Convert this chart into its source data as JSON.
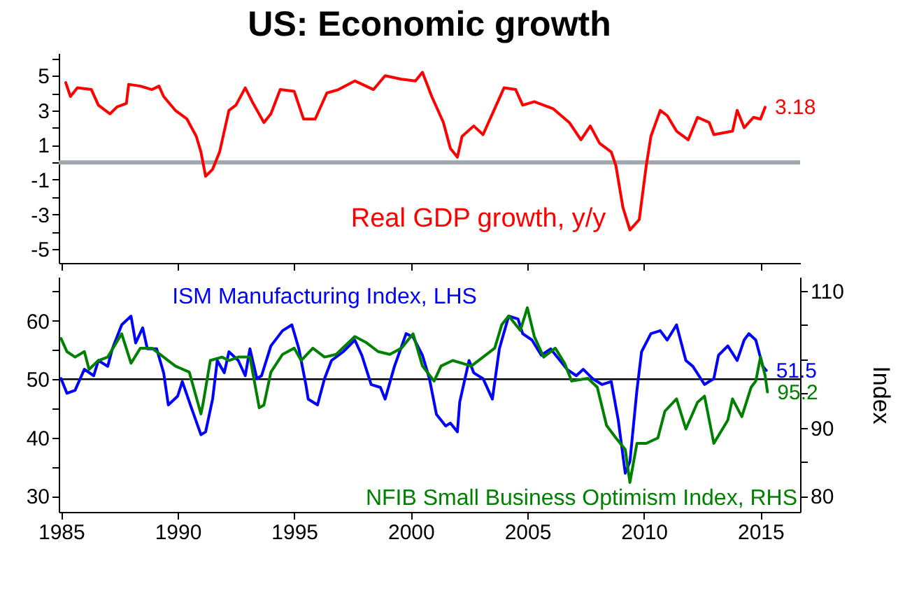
{
  "chart_data": [
    {
      "type": "line",
      "title": "US: Economic growth",
      "xlim": [
        1984.9,
        2016.7
      ],
      "xticks": [
        1985,
        1990,
        1995,
        2000,
        2005,
        2010,
        2015
      ],
      "ylim": [
        -5.8,
        6.3
      ],
      "yticks": [
        -5,
        {
          "value": -4,
          "label": null
        },
        -3,
        {
          "value": -2,
          "label": null
        },
        -1,
        {
          "value": 0,
          "label": null
        },
        1,
        {
          "value": 2,
          "label": null
        },
        3,
        {
          "value": 4,
          "label": null
        },
        5,
        {
          "value": 6,
          "label": null
        }
      ],
      "tick_labels": "y",
      "grid": false,
      "ref_lines": [
        {
          "axis": "y",
          "value": 0,
          "color": "#a0a8ad"
        }
      ],
      "series": [
        {
          "name": "Real GDP growth, y/y",
          "color": "#ff0000",
          "x": [
            1985.2,
            1985.4,
            1985.7,
            1986.3,
            1986.6,
            1987.1,
            1987.4,
            1987.8,
            1987.9,
            1988.4,
            1988.9,
            1989.2,
            1989.4,
            1989.9,
            1990.4,
            1990.8,
            1991.0,
            1991.2,
            1991.5,
            1991.8,
            1992.2,
            1992.5,
            1992.9,
            1993.2,
            1993.7,
            1994.0,
            1994.4,
            1995.0,
            1995.4,
            1995.9,
            1996.4,
            1996.9,
            1997.6,
            1998.4,
            1998.9,
            1999.6,
            2000.2,
            2000.5,
            2000.9,
            2001.4,
            2001.7,
            2002.0,
            2002.2,
            2002.7,
            2003.1,
            2003.6,
            2004.0,
            2004.5,
            2004.8,
            2005.3,
            2006.1,
            2006.8,
            2007.3,
            2007.7,
            2008.1,
            2008.6,
            2008.8,
            2009.1,
            2009.4,
            2009.8,
            2010.1,
            2010.3,
            2010.7,
            2011.0,
            2011.4,
            2011.9,
            2012.3,
            2012.8,
            2013.0,
            2013.8,
            2014.0,
            2014.3,
            2014.7,
            2015.0,
            2015.2
          ],
          "values": [
            4.6,
            3.8,
            4.3,
            4.2,
            3.3,
            2.8,
            3.2,
            3.4,
            4.5,
            4.4,
            4.2,
            4.4,
            3.8,
            3.0,
            2.5,
            1.5,
            0.6,
            -0.8,
            -0.4,
            0.6,
            3.0,
            3.3,
            4.3,
            3.5,
            2.3,
            2.8,
            4.2,
            4.1,
            2.5,
            2.5,
            4.0,
            4.2,
            4.7,
            4.2,
            5.0,
            4.8,
            4.7,
            5.2,
            3.8,
            2.3,
            0.8,
            0.3,
            1.5,
            2.1,
            1.6,
            3.1,
            4.3,
            4.2,
            3.3,
            3.5,
            3.1,
            2.3,
            1.3,
            2.1,
            1.1,
            0.6,
            -0.2,
            -2.6,
            -3.9,
            -3.3,
            -0.2,
            1.5,
            3.0,
            2.7,
            1.8,
            1.3,
            2.6,
            2.3,
            1.6,
            1.8,
            3.0,
            2.0,
            2.6,
            2.5,
            3.18
          ],
          "value_labels": [
            null,
            null,
            null,
            null,
            null,
            null,
            null,
            null,
            null,
            null,
            null,
            null,
            null,
            null,
            null,
            null,
            null,
            null,
            null,
            null,
            null,
            null,
            null,
            null,
            null,
            null,
            null,
            null,
            null,
            null,
            null,
            null,
            null,
            null,
            null,
            null,
            null,
            null,
            null,
            null,
            null,
            null,
            null,
            null,
            null,
            null,
            null,
            null,
            null,
            null,
            null,
            null,
            null,
            null,
            null,
            null,
            null,
            null,
            null,
            null,
            null,
            null,
            null,
            null,
            null,
            null,
            null,
            null,
            null,
            null,
            null,
            null,
            null,
            null,
            "3.18"
          ]
        }
      ]
    },
    {
      "type": "line",
      "xlim": [
        1984.9,
        2016.7
      ],
      "xticks": [
        1985,
        1990,
        1995,
        2000,
        2005,
        2010,
        2015
      ],
      "ylim": [
        27.3,
        67.5
      ],
      "yticks": [
        30,
        {
          "value": 35,
          "label": null
        },
        40,
        {
          "value": 45,
          "label": null
        },
        50,
        {
          "value": 55,
          "label": null
        },
        60,
        {
          "value": 65,
          "label": null
        }
      ],
      "y2lim": [
        77.7,
        112
      ],
      "y2ticks": [
        80,
        {
          "value": 85,
          "label": null
        },
        90,
        {
          "value": 95,
          "label": null
        },
        {
          "value": 100,
          "label": null
        },
        {
          "value": 105,
          "label": null
        },
        110
      ],
      "y2label": "Index",
      "grid": false,
      "ref_lines": [
        {
          "axis": "y",
          "value": 50,
          "color": "#000000"
        }
      ],
      "series": [
        {
          "name": "ISM Manufacturing Index, LHS",
          "color": "#0000ff",
          "axis": "y",
          "x": [
            1985.0,
            1985.25,
            1985.6,
            1986.0,
            1986.4,
            1986.6,
            1987.0,
            1987.2,
            1987.6,
            1988.0,
            1988.2,
            1988.5,
            1988.7,
            1989.1,
            1989.4,
            1989.6,
            1990.0,
            1990.2,
            1990.6,
            1991.0,
            1991.2,
            1991.5,
            1991.7,
            1992.0,
            1992.2,
            1992.6,
            1992.9,
            1993.1,
            1993.4,
            1993.6,
            1994.0,
            1994.5,
            1994.9,
            1995.2,
            1995.5,
            1995.6,
            1996.0,
            1996.3,
            1996.6,
            1997.1,
            1997.6,
            1997.9,
            1998.3,
            1998.7,
            1998.9,
            1999.3,
            1999.8,
            2000.1,
            2000.5,
            2000.8,
            2001.1,
            2001.5,
            2001.7,
            2002.0,
            2002.1,
            2002.5,
            2002.7,
            2003.1,
            2003.5,
            2003.8,
            2004.2,
            2004.6,
            2004.8,
            2005.2,
            2005.6,
            2006.0,
            2006.3,
            2006.7,
            2007.1,
            2007.4,
            2007.8,
            2008.2,
            2008.6,
            2008.9,
            2009.2,
            2009.4,
            2009.7,
            2009.9,
            2010.3,
            2010.7,
            2011.0,
            2011.4,
            2011.8,
            2012.1,
            2012.6,
            2013.0,
            2013.2,
            2013.6,
            2014.0,
            2014.3,
            2014.5,
            2014.8,
            2015.1,
            2015.25
          ],
          "values": [
            50.1,
            47.6,
            48.1,
            51.7,
            50.6,
            53.2,
            52.2,
            55.2,
            59.3,
            60.8,
            56.2,
            58.8,
            55.2,
            55.2,
            51.1,
            45.6,
            47.1,
            49.6,
            45.0,
            40.5,
            41.0,
            46.6,
            53.2,
            51.1,
            54.7,
            53.2,
            50.6,
            55.2,
            50.1,
            50.6,
            55.7,
            58.3,
            59.3,
            55.2,
            49.1,
            46.6,
            45.6,
            50.1,
            53.2,
            54.7,
            56.7,
            54.1,
            49.1,
            48.6,
            46.6,
            52.2,
            57.8,
            57.2,
            54.1,
            50.1,
            44.0,
            42.0,
            42.5,
            41.0,
            46.1,
            53.2,
            51.1,
            50.1,
            46.6,
            55.2,
            60.8,
            60.3,
            57.8,
            56.7,
            54.1,
            55.2,
            53.7,
            51.7,
            50.6,
            51.7,
            50.1,
            49.1,
            49.6,
            43.0,
            33.9,
            35.9,
            48.1,
            54.7,
            57.8,
            58.3,
            56.7,
            59.3,
            53.2,
            52.2,
            49.1,
            50.1,
            54.1,
            55.7,
            53.2,
            56.7,
            57.8,
            56.7,
            52.2,
            51.5
          ],
          "value_labels": [
            null,
            null,
            null,
            null,
            null,
            null,
            null,
            null,
            null,
            null,
            null,
            null,
            null,
            null,
            null,
            null,
            null,
            null,
            null,
            null,
            null,
            null,
            null,
            null,
            null,
            null,
            null,
            null,
            null,
            null,
            null,
            null,
            null,
            null,
            null,
            null,
            null,
            null,
            null,
            null,
            null,
            null,
            null,
            null,
            null,
            null,
            null,
            null,
            null,
            null,
            null,
            null,
            null,
            null,
            null,
            null,
            null,
            null,
            null,
            null,
            null,
            null,
            null,
            null,
            null,
            null,
            null,
            null,
            null,
            null,
            null,
            null,
            null,
            null,
            null,
            null,
            null,
            null,
            null,
            null,
            null,
            null,
            null,
            null,
            null,
            null,
            null,
            null,
            null,
            null,
            null,
            null,
            null,
            "51.5"
          ]
        },
        {
          "name": "NFIB Small Business Optimism Index, RHS",
          "color": "#008000",
          "axis": "y2",
          "x": [
            1985.0,
            1985.25,
            1985.6,
            1986.0,
            1986.2,
            1986.6,
            1987.0,
            1987.6,
            1988.0,
            1988.4,
            1988.9,
            1989.4,
            1989.9,
            1990.5,
            1991.0,
            1991.1,
            1991.4,
            1991.9,
            1992.2,
            1992.6,
            1993.1,
            1993.5,
            1993.7,
            1994.0,
            1994.5,
            1995.0,
            1995.3,
            1995.8,
            1996.3,
            1996.8,
            1997.6,
            1998.1,
            1998.6,
            1999.1,
            1999.6,
            2000.1,
            2000.5,
            2001.0,
            2001.3,
            2001.8,
            2002.6,
            2003.1,
            2003.6,
            2003.9,
            2004.2,
            2004.7,
            2005.0,
            2005.3,
            2005.7,
            2006.2,
            2006.6,
            2006.9,
            2007.6,
            2008.0,
            2008.4,
            2008.8,
            2009.2,
            2009.4,
            2009.7,
            2010.1,
            2010.6,
            2010.9,
            2011.4,
            2011.8,
            2012.3,
            2012.6,
            2013.0,
            2013.6,
            2013.8,
            2014.2,
            2014.6,
            2014.8,
            2015.0,
            2015.2,
            2015.3
          ],
          "values": [
            103.0,
            101.1,
            100.3,
            101.1,
            98.5,
            99.8,
            100.3,
            103.7,
            99.4,
            101.6,
            101.6,
            100.3,
            99.0,
            98.1,
            92.0,
            93.7,
            99.8,
            100.3,
            99.8,
            100.3,
            100.3,
            92.9,
            93.3,
            98.1,
            100.7,
            101.6,
            99.8,
            101.6,
            100.3,
            100.7,
            103.3,
            102.4,
            101.1,
            100.7,
            101.6,
            103.7,
            99.0,
            96.8,
            99.0,
            99.8,
            99.0,
            100.3,
            101.6,
            105.0,
            106.3,
            104.2,
            107.5,
            103.3,
            100.3,
            101.6,
            99.4,
            96.8,
            97.2,
            95.9,
            90.3,
            88.5,
            86.8,
            82.0,
            87.7,
            87.7,
            88.5,
            92.4,
            94.2,
            89.8,
            93.7,
            94.6,
            87.7,
            91.1,
            94.2,
            91.6,
            95.9,
            96.8,
            100.3,
            97.6,
            95.2
          ],
          "value_labels": [
            null,
            null,
            null,
            null,
            null,
            null,
            null,
            null,
            null,
            null,
            null,
            null,
            null,
            null,
            null,
            null,
            null,
            null,
            null,
            null,
            null,
            null,
            null,
            null,
            null,
            null,
            null,
            null,
            null,
            null,
            null,
            null,
            null,
            null,
            null,
            null,
            null,
            null,
            null,
            null,
            null,
            null,
            null,
            null,
            null,
            null,
            null,
            null,
            null,
            null,
            null,
            null,
            null,
            null,
            null,
            null,
            null,
            null,
            null,
            null,
            null,
            null,
            null,
            null,
            null,
            null,
            null,
            null,
            null,
            null,
            null,
            null,
            null,
            null,
            "95.2"
          ]
        }
      ]
    }
  ]
}
